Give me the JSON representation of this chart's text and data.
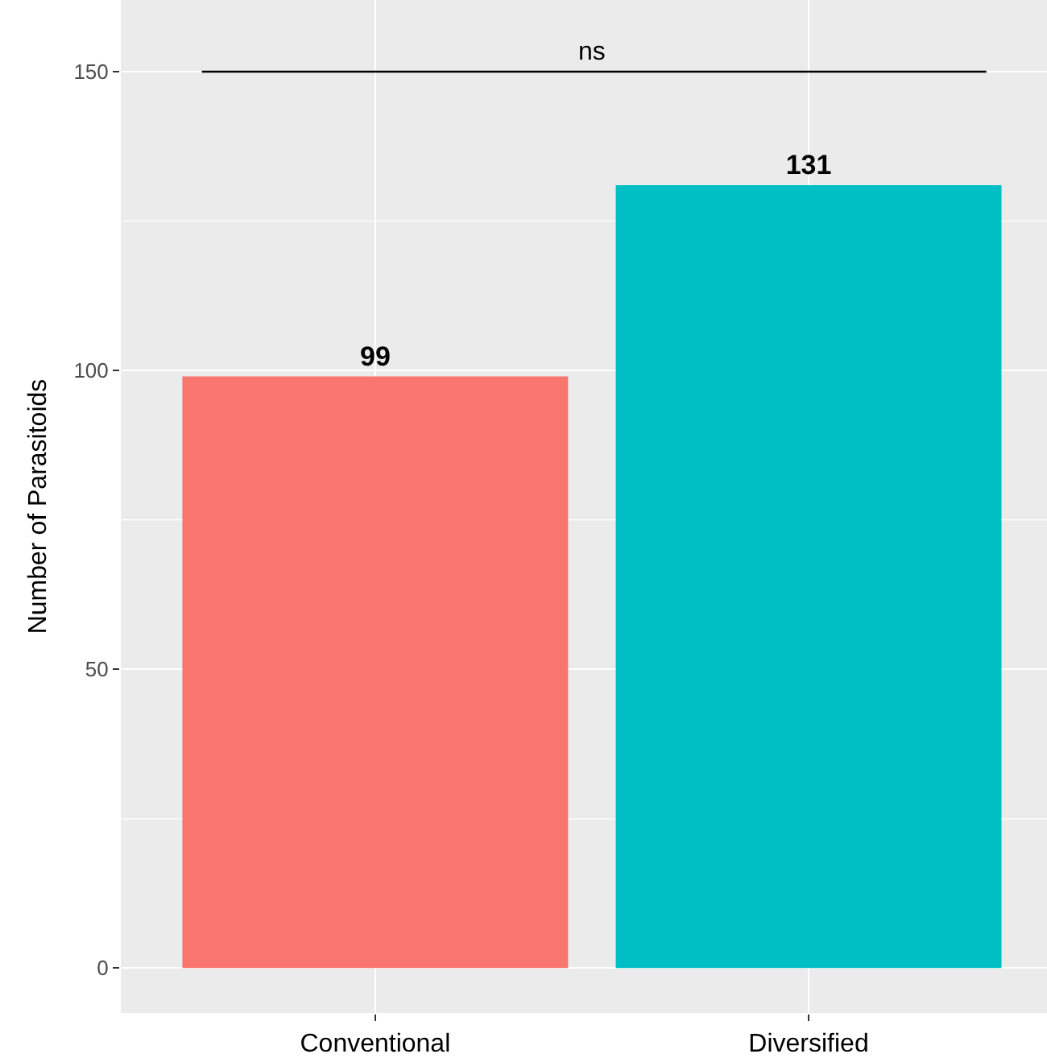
{
  "chart_data": {
    "type": "bar",
    "ylabel": "Number of Parasitoids",
    "categories": [
      "Conventional",
      "Diversified"
    ],
    "values": [
      99,
      131
    ],
    "colors": [
      "#f8766d",
      "#00bfc4"
    ],
    "data_labels": true,
    "ylim": [
      -7.5,
      162
    ],
    "yticks": [
      0,
      50,
      100,
      150
    ],
    "grid": true,
    "ref_lines": [
      {
        "axis": "y",
        "value": 150,
        "label": "ns",
        "color": "#000000"
      }
    ]
  }
}
